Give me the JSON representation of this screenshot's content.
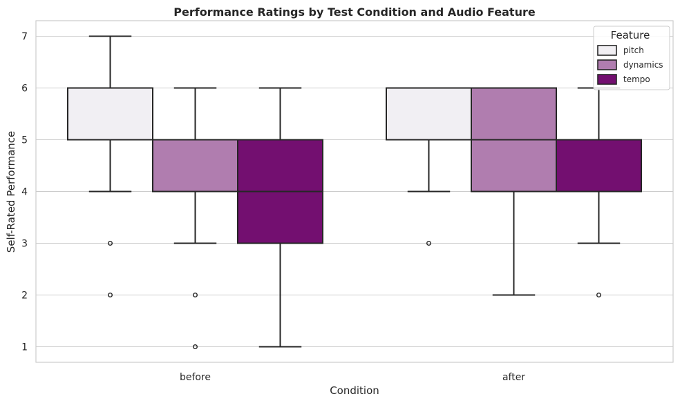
{
  "chart_data": {
    "type": "box",
    "title": "Performance Ratings by Test Condition and Audio Feature",
    "xlabel": "Condition",
    "ylabel": "Self-Rated Performance",
    "categories": [
      "before",
      "after"
    ],
    "ylim": [
      0.7,
      7.3
    ],
    "yticks": [
      "1",
      "2",
      "3",
      "4",
      "5",
      "6",
      "7"
    ],
    "grid": "horizontal",
    "legend": {
      "title": "Feature",
      "placement": "top-right"
    },
    "series": [
      {
        "name": "pitch",
        "color": "#f1eff3",
        "boxes": [
          {
            "category": "before",
            "whisker_low": 4,
            "q1": 5,
            "median": 5,
            "q3": 6,
            "whisker_high": 7,
            "outliers": [
              3,
              2
            ]
          },
          {
            "category": "after",
            "whisker_low": 4,
            "q1": 5,
            "median": 5,
            "q3": 6,
            "whisker_high": 6,
            "outliers": [
              3
            ]
          }
        ]
      },
      {
        "name": "dynamics",
        "color": "#b07daf",
        "boxes": [
          {
            "category": "before",
            "whisker_low": 3,
            "q1": 4,
            "median": 5,
            "q3": 5,
            "whisker_high": 6,
            "outliers": [
              2,
              1
            ]
          },
          {
            "category": "after",
            "whisker_low": 2,
            "q1": 4,
            "median": 5,
            "q3": 6,
            "whisker_high": 6,
            "outliers": []
          }
        ]
      },
      {
        "name": "tempo",
        "color": "#730f70",
        "boxes": [
          {
            "category": "before",
            "whisker_low": 1,
            "q1": 3,
            "median": 4,
            "q3": 5,
            "whisker_high": 6,
            "outliers": []
          },
          {
            "category": "after",
            "whisker_low": 3,
            "q1": 4,
            "median": 5,
            "q3": 5,
            "whisker_high": 6,
            "outliers": [
              2
            ]
          }
        ]
      }
    ]
  }
}
